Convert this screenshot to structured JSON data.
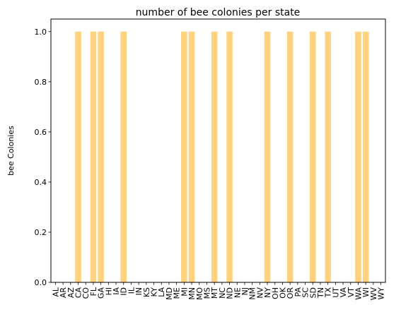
{
  "chart_data": {
    "type": "bar",
    "title": "number of bee colonies per state",
    "xlabel": "",
    "ylabel": "bee Colonies",
    "ylim": [
      0,
      1.05
    ],
    "yticks": [
      "0.0",
      "0.2",
      "0.4",
      "0.6",
      "0.8",
      "1.0"
    ],
    "bar_color": "#fed27f",
    "grid": false,
    "legend": "none",
    "categories": [
      "AL",
      "AR",
      "AZ",
      "CA",
      "CO",
      "FL",
      "GA",
      "HI",
      "IA",
      "ID",
      "IL",
      "IN",
      "KS",
      "KY",
      "LA",
      "MD",
      "ME",
      "MI",
      "MN",
      "MO",
      "MS",
      "MT",
      "NC",
      "ND",
      "NE",
      "NJ",
      "NM",
      "NV",
      "NY",
      "OH",
      "OK",
      "OR",
      "PA",
      "SC",
      "SD",
      "TN",
      "TX",
      "UT",
      "VA",
      "VT",
      "WA",
      "WI",
      "WV",
      "WY"
    ],
    "values": [
      0,
      0,
      0,
      1,
      0,
      1,
      1,
      0,
      0,
      1,
      0,
      0,
      0,
      0,
      0,
      0,
      0,
      1,
      1,
      0,
      0,
      1,
      0,
      1,
      0,
      0,
      0,
      0,
      1,
      0,
      0,
      1,
      0,
      0,
      1,
      0,
      1,
      0,
      0,
      0,
      1,
      1,
      0,
      0
    ]
  }
}
